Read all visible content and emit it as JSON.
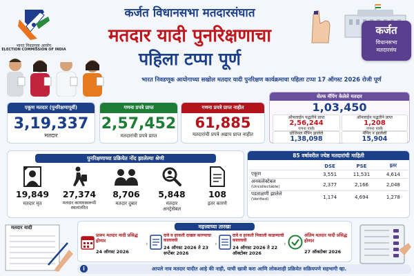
{
  "header": {
    "eci_logo_name": "भारत निवडणूक आयोग",
    "eci_logo_name_en": "ELECTION COMMISSION OF INDIA",
    "title_line1": "कर्जत विधानसभा मतदारसंघात",
    "title_line2": "मतदार यादी पुनरिक्षणाचा",
    "title_line3": "पहिला टप्पा पूर्ण",
    "badge_title": "कर्जत",
    "badge_sub1": "विधानसभा",
    "badge_sub2": "मतदारसंघ"
  },
  "subtitle": "भारत निवडणूक आयोगाच्या सखोल मतदार यादी पुनरिक्षण कार्यक्रमाचा पहिला टप्पा 17 ऑगस्ट 2026 रोजी पूर्ण",
  "stats": {
    "total_label": "एकूण मतदार (पुनरिक्षणापूर्वी)",
    "total_value": "3,19,337",
    "total_sub": "मतदार",
    "received_label": "गणना प्रपत्रे प्राप्त",
    "received_value": "2,57,452",
    "received_sub": "मतदारांची प्रपत्रे प्राप्त",
    "not_received_label": "गणना प्रपत्रे प्राप्त नाहीत",
    "not_received_value": "61,885",
    "not_received_sub": "मतदारांची प्रपत्रे अद्याप प्राप्त नाहीत"
  },
  "self_mapping": {
    "header": "सेल्फ मॅपिंग केलेले मतदार",
    "total": "1,03,450",
    "offline_label": "ऑफलाईन पद्धतीने प्राप्त",
    "offline_value": "2,56,244",
    "offline_sub": "गणना पत्रके",
    "online_label": "ऑनलाईन पद्धतीने प्राप्त",
    "online_value": "1,208",
    "online_sub": "गणना पत्रके",
    "progeny_label": "प्रोजिनल मॅपिंग झालेले",
    "progeny_value": "1,38,098",
    "notmapped_label": "मॅपिंग न झालेली",
    "notmapped_value": "15,904"
  },
  "categories": {
    "header": "पुनरिक्षणाच्या प्रक्रियेत नोंद झालेल्या श्रेणी",
    "items": [
      {
        "value": "19,849",
        "label": "मतदार मृत",
        "icon": "deceased-portrait-icon"
      },
      {
        "value": "27,374",
        "label": "मतदार कायमस्वरूपी स्थलांतरित",
        "icon": "migrant-walking-icon"
      },
      {
        "value": "8,706",
        "label": "मतदार दुबार",
        "icon": "duplicate-people-icon"
      },
      {
        "value": "5,848",
        "label": "मतदार अनट्रेसेबल",
        "icon": "search-person-icon"
      },
      {
        "value": "108",
        "label": "इतर कारणे",
        "icon": "document-icon"
      }
    ]
  },
  "senior": {
    "header": "85 वर्षावरील ज्येष्ठ मतदारांची माहिती",
    "columns": [
      "",
      "DSE",
      "PSE",
      "इतर"
    ],
    "rows": [
      {
        "label": "एकूण",
        "sub": "",
        "values": [
          "3,551",
          "11,531",
          "4,614"
        ]
      },
      {
        "label": "अनकलेक्टेबल",
        "sub": "(Uncollectable)",
        "values": [
          "2,377",
          "2,166",
          "2,048"
        ]
      },
      {
        "label": "पडताळणी झालेले",
        "sub": "(Verified)",
        "values": [
          "1,174",
          "4,694",
          "1,278"
        ]
      }
    ]
  },
  "dates": {
    "header": "महत्त्वाच्या तारखा",
    "items": [
      {
        "title": "प्रारुप मतदार यादी प्रसिद्ध होणार",
        "date": "24 ऑगस्ट 2026"
      },
      {
        "title": "दावे व हरकती दाखल करण्याचा कालावधी",
        "date": "24 ऑगस्ट 2026 ते 23 सप्टेंबर 2026"
      },
      {
        "title": "दावे व हरकती निकाली काढण्याची कालावधी",
        "date": "24 ऑगस्ट 2026 ते 22 ऑक्टोबर 2026"
      },
      {
        "title": "अंतिम मतदार यादी प्रसिद्ध होणार",
        "date": "27 ऑक्टोबर 2026"
      }
    ]
  },
  "voter_list_label": "मतदार यादी",
  "footer": "आपले नाव मतदार यादीत आहे की नाही, याची खात्री करा आणि लोकशाही प्रक्रियेत सक्रियपणे सहभागी व्हा.",
  "colors": {
    "navy": "#1c3f8a",
    "green": "#1e7d34",
    "red": "#b3141b",
    "orange": "#e77817",
    "purple": "#6a4f9c"
  }
}
